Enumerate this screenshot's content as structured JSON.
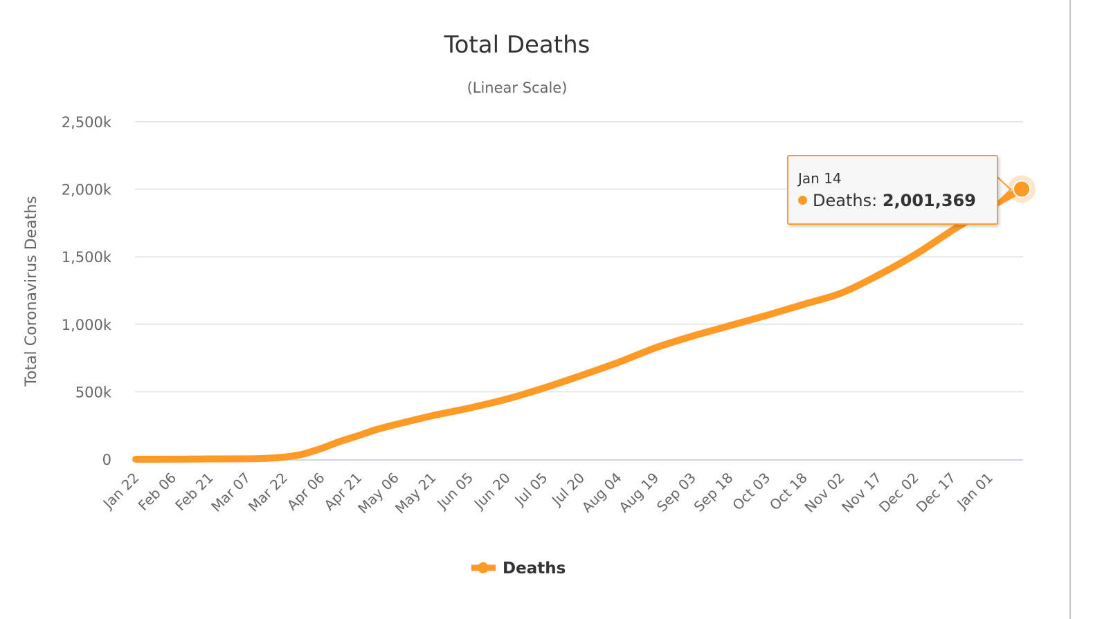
{
  "chart_data": {
    "type": "line",
    "title": "Total Deaths",
    "subtitle": "(Linear Scale)",
    "xlabel": "",
    "ylabel": "Total Coronavirus Deaths",
    "ylim": [
      0,
      2500000
    ],
    "yticks": [
      {
        "value": 0,
        "label": "0"
      },
      {
        "value": 500000,
        "label": "500k"
      },
      {
        "value": 1000000,
        "label": "1,000k"
      },
      {
        "value": 1500000,
        "label": "1,500k"
      },
      {
        "value": 2000000,
        "label": "2,000k"
      },
      {
        "value": 2500000,
        "label": "2,500k"
      }
    ],
    "xticks": [
      "Jan 22",
      "Feb 06",
      "Feb 21",
      "Mar 07",
      "Mar 22",
      "Apr 06",
      "Apr 21",
      "May 06",
      "May 21",
      "Jun 05",
      "Jun 20",
      "Jul 05",
      "Jul 20",
      "Aug 04",
      "Aug 19",
      "Sep 03",
      "Sep 18",
      "Oct 03",
      "Oct 18",
      "Nov 02",
      "Nov 17",
      "Dec 02",
      "Dec 17",
      "Jan 01"
    ],
    "xtick_interval_days": 15,
    "grid": true,
    "legend": {
      "position": "bottom-center",
      "entries": [
        "Deaths"
      ]
    },
    "series": [
      {
        "name": "Deaths",
        "color": "#ff9a27",
        "points": [
          {
            "day": 0,
            "date": "Jan 22",
            "value": 17
          },
          {
            "day": 15,
            "date": "Feb 06",
            "value": 565
          },
          {
            "day": 30,
            "date": "Feb 21",
            "value": 2250
          },
          {
            "day": 45,
            "date": "Mar 07",
            "value": 3500
          },
          {
            "day": 52,
            "date": "Mar 14",
            "value": 5800
          },
          {
            "day": 60,
            "date": "Mar 22",
            "value": 16000
          },
          {
            "day": 67,
            "date": "Mar 29",
            "value": 35000
          },
          {
            "day": 75,
            "date": "Apr 06",
            "value": 80000
          },
          {
            "day": 82,
            "date": "Apr 13",
            "value": 128000
          },
          {
            "day": 90,
            "date": "Apr 21",
            "value": 175000
          },
          {
            "day": 97,
            "date": "Apr 28",
            "value": 218000
          },
          {
            "day": 105,
            "date": "May 06",
            "value": 257000
          },
          {
            "day": 120,
            "date": "May 21",
            "value": 323000
          },
          {
            "day": 135,
            "date": "Jun 05",
            "value": 380000
          },
          {
            "day": 150,
            "date": "Jun 20",
            "value": 446000
          },
          {
            "day": 165,
            "date": "Jul 05",
            "value": 528000
          },
          {
            "day": 180,
            "date": "Jul 20",
            "value": 620000
          },
          {
            "day": 195,
            "date": "Aug 04",
            "value": 717000
          },
          {
            "day": 210,
            "date": "Aug 19",
            "value": 825000
          },
          {
            "day": 225,
            "date": "Sep 03",
            "value": 912000
          },
          {
            "day": 240,
            "date": "Sep 18",
            "value": 989000
          },
          {
            "day": 255,
            "date": "Oct 03",
            "value": 1066000
          },
          {
            "day": 270,
            "date": "Oct 18",
            "value": 1148000
          },
          {
            "day": 285,
            "date": "Nov 02",
            "value": 1230000
          },
          {
            "day": 300,
            "date": "Nov 17",
            "value": 1363000
          },
          {
            "day": 315,
            "date": "Dec 02",
            "value": 1516000
          },
          {
            "day": 330,
            "date": "Dec 17",
            "value": 1696000
          },
          {
            "day": 345,
            "date": "Jan 01",
            "value": 1865000
          },
          {
            "day": 358,
            "date": "Jan 14",
            "value": 2001369
          }
        ]
      }
    ],
    "x_range_days": [
      0,
      359
    ]
  },
  "tooltip": {
    "date": "Jan 14",
    "series_label": "Deaths:",
    "value": "2,001,369"
  },
  "legend": {
    "label": "Deaths"
  }
}
